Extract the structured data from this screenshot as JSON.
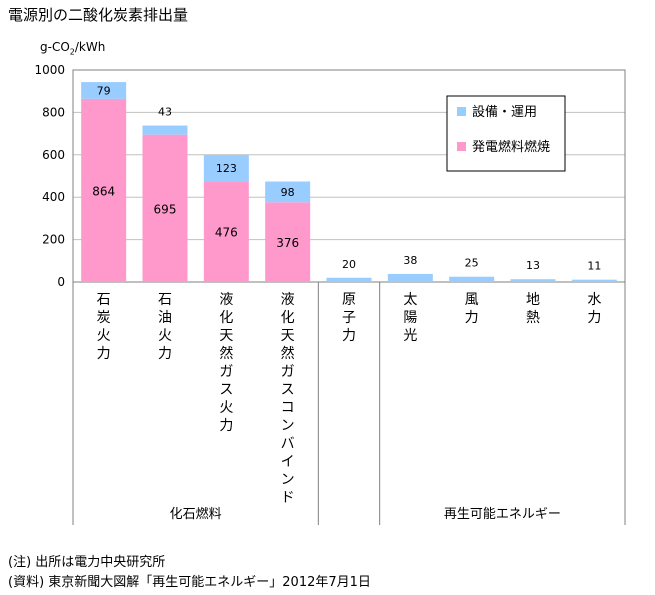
{
  "title": "電源別の二酸化炭素排出量",
  "unit": {
    "prefix": "g-CO",
    "sub": "2",
    "suffix": "/kWh"
  },
  "notes": {
    "note1": "(注) 出所は電力中央研究所",
    "note2": "(資料) 東京新聞大図解「再生可能エネルギー」2012年7月1日"
  },
  "colors": {
    "fuel": "#ff99cc",
    "facility": "#99ccff",
    "axis": "#808080",
    "grid": "#c0c0c0"
  },
  "chart_data": {
    "type": "bar",
    "stacked": true,
    "categories": [
      "石炭火力",
      "石油火力",
      "液化天然ガス火力",
      "液化天然ガスコンバインド",
      "原子力",
      "太陽光",
      "風力",
      "地熱",
      "水力"
    ],
    "series": [
      {
        "name": "発電燃料燃焼",
        "values": [
          864,
          695,
          476,
          376,
          0,
          0,
          0,
          0,
          0
        ]
      },
      {
        "name": "設備・運用",
        "values": [
          79,
          43,
          123,
          98,
          20,
          38,
          25,
          13,
          11
        ]
      }
    ],
    "yticks": [
      "0",
      "200",
      "400",
      "600",
      "800",
      "1000"
    ],
    "ylim": [
      0,
      1000
    ],
    "grid": true,
    "legend": "top-right",
    "groups": [
      {
        "label": "化石燃料",
        "categories": [
          "石炭火力",
          "石油火力",
          "液化天然ガス火力",
          "液化天然ガスコンバインド"
        ]
      },
      {
        "label": "",
        "categories": [
          "原子力"
        ]
      },
      {
        "label": "再生可能エネルギー",
        "categories": [
          "太陽光",
          "風力",
          "地熱",
          "水力"
        ]
      }
    ]
  }
}
